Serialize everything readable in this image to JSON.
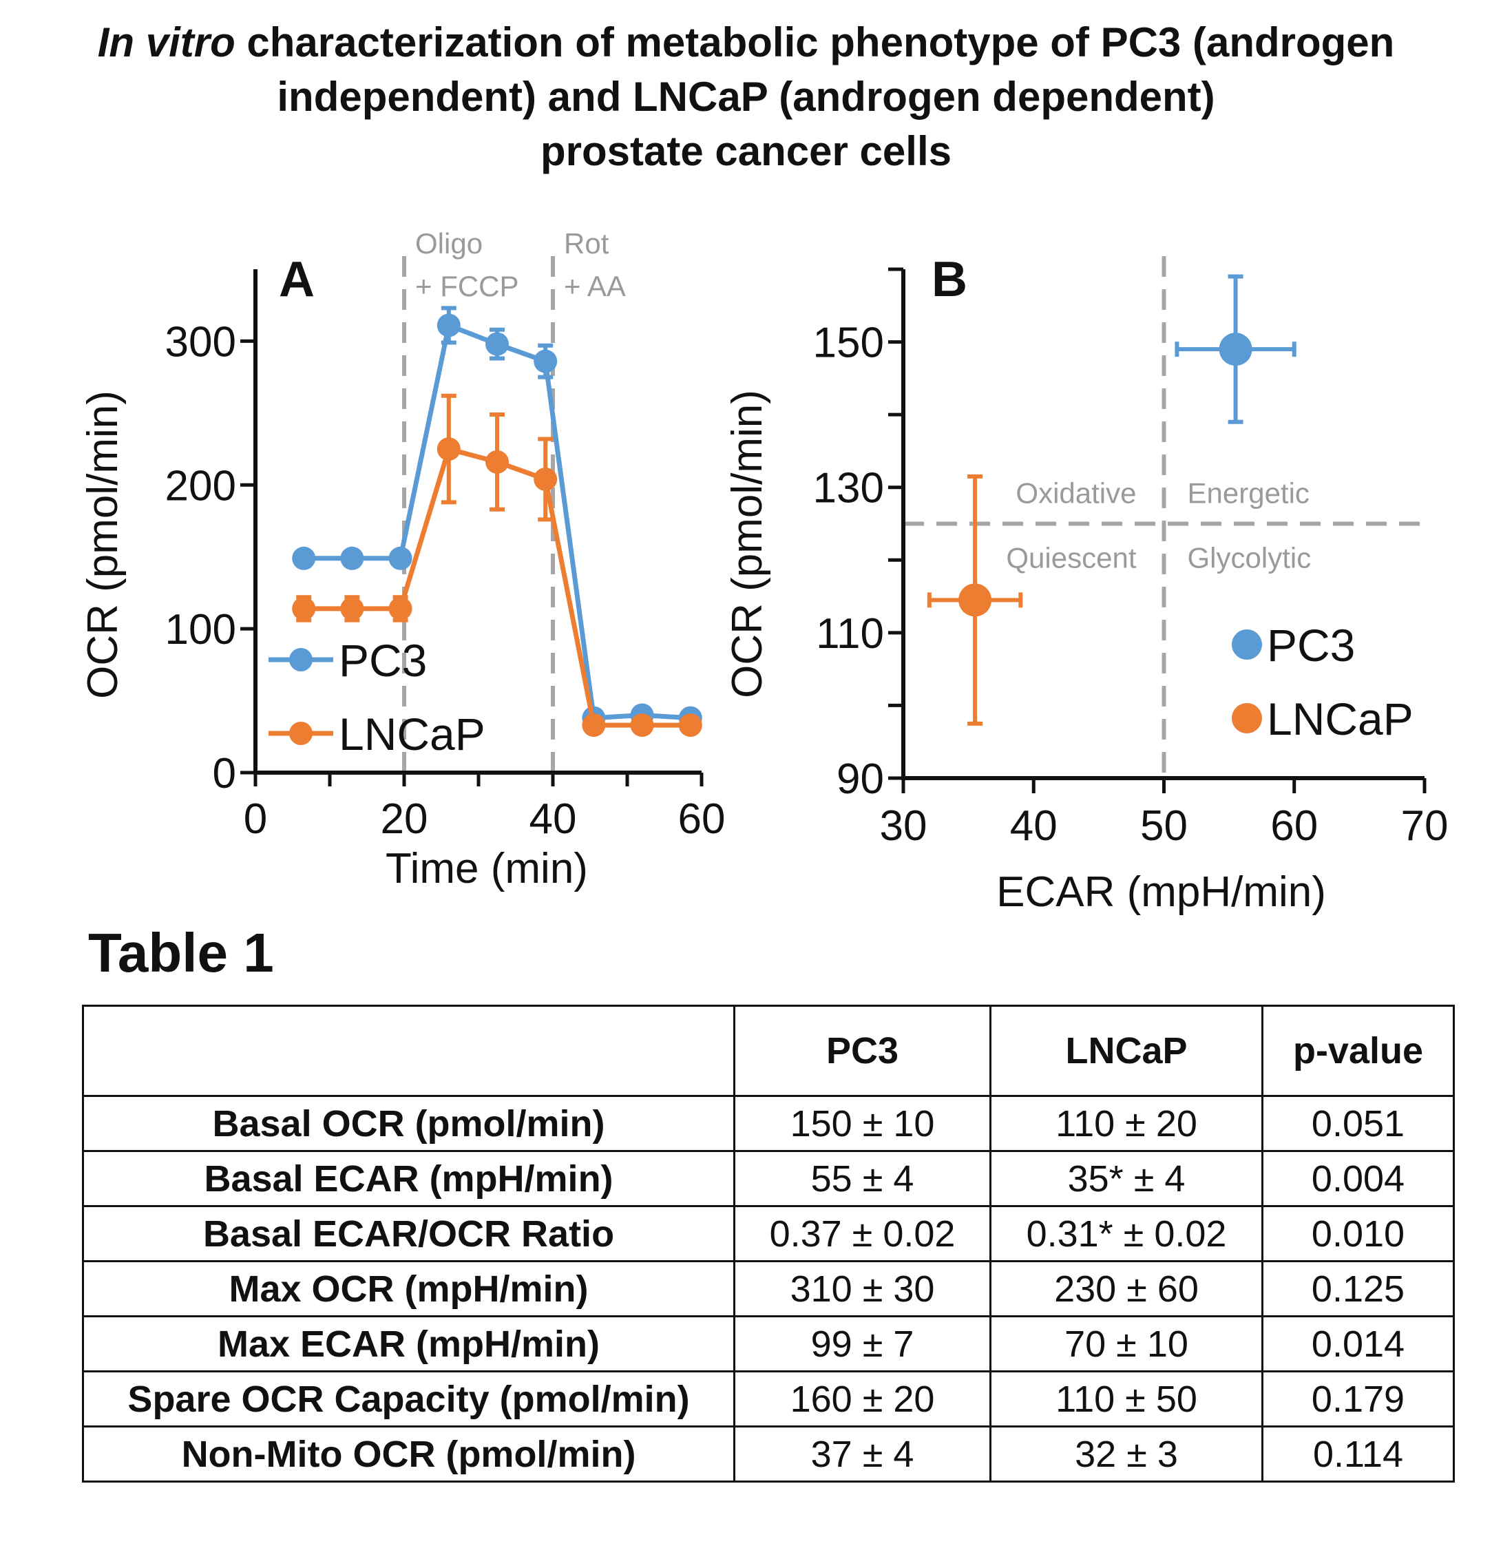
{
  "title": {
    "italic": "In vitro",
    "rest": " characterization of metabolic phenotype of PC3 (androgen",
    "line2": "independent) and LNCaP (androgen dependent)",
    "line3": "prostate cancer cells"
  },
  "chart_data": [
    {
      "type": "line",
      "panel_label": "A",
      "xlabel": "Time (min)",
      "ylabel": "OCR (pmol/min)",
      "xlim": [
        0,
        60
      ],
      "ylim": [
        0,
        350
      ],
      "xticks": [
        0,
        20,
        40,
        60
      ],
      "yticks": [
        0,
        100,
        200,
        300
      ],
      "annotations": [
        {
          "x": 20,
          "lines": [
            "Oligo",
            "+ FCCP"
          ]
        },
        {
          "x": 40,
          "lines": [
            "Rot",
            "+ AA"
          ]
        }
      ],
      "legend_position": "bottom-left",
      "series": [
        {
          "name": "PC3",
          "color": "#5b9bd5",
          "x": [
            6.5,
            13,
            19.5,
            26,
            32.5,
            39,
            45.5,
            52,
            58.5
          ],
          "y": [
            149,
            149,
            149,
            311,
            298,
            286,
            38,
            40,
            38
          ],
          "err": [
            0,
            0,
            0,
            12,
            10,
            11,
            0,
            0,
            0
          ]
        },
        {
          "name": "LNCaP",
          "color": "#ed7d31",
          "x": [
            6.5,
            13,
            19.5,
            26,
            32.5,
            39,
            45.5,
            52,
            58.5
          ],
          "y": [
            114,
            114,
            114,
            225,
            216,
            204,
            33,
            33,
            33
          ],
          "err": [
            8,
            8,
            8,
            37,
            33,
            28,
            0,
            0,
            0
          ]
        }
      ]
    },
    {
      "type": "scatter",
      "panel_label": "B",
      "xlabel": "ECAR (mpH/min)",
      "ylabel": "OCR (pmol/min)",
      "xlim": [
        30,
        70
      ],
      "ylim": [
        90,
        160
      ],
      "xticks": [
        30,
        40,
        50,
        60,
        70
      ],
      "yticks": [
        90,
        110,
        130,
        150
      ],
      "dividers": {
        "x": 50,
        "y": 125
      },
      "quadrants": [
        "Oxidative",
        "Energetic",
        "Quiescent",
        "Glycolytic"
      ],
      "legend_position": "bottom-right",
      "series": [
        {
          "name": "PC3",
          "color": "#5b9bd5",
          "x": 55.5,
          "y": 149,
          "xerr": 4.5,
          "yerr": 10
        },
        {
          "name": "LNCaP",
          "color": "#ed7d31",
          "x": 35.5,
          "y": 114.5,
          "xerr": 3.5,
          "yerr": 17
        }
      ]
    }
  ],
  "table": {
    "title": "Table 1",
    "headers": [
      "",
      "PC3",
      "LNCaP",
      "p-value"
    ],
    "rows": [
      [
        "Basal OCR (pmol/min)",
        "150 ± 10",
        "110 ± 20",
        "0.051"
      ],
      [
        "Basal ECAR (mpH/min)",
        "55 ± 4",
        "35* ± 4",
        "0.004"
      ],
      [
        "Basal ECAR/OCR Ratio",
        "0.37 ± 0.02",
        "0.31* ± 0.02",
        "0.010"
      ],
      [
        "Max OCR (mpH/min)",
        "310 ± 30",
        "230 ± 60",
        "0.125"
      ],
      [
        "Max ECAR (mpH/min)",
        "99 ± 7",
        "70 ± 10",
        "0.014"
      ],
      [
        "Spare OCR Capacity (pmol/min)",
        "160 ± 20",
        "110 ± 50",
        "0.179"
      ],
      [
        "Non-Mito OCR (pmol/min)",
        "37 ± 4",
        "32 ± 3",
        "0.114"
      ]
    ]
  }
}
